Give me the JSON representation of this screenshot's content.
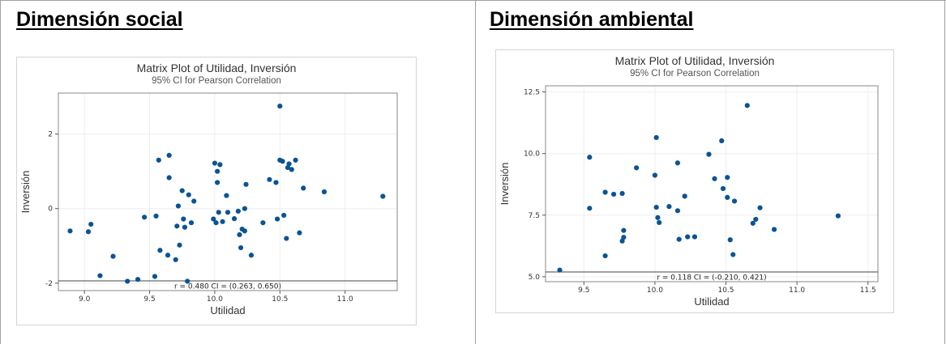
{
  "headings": {
    "left": "Dimensión social",
    "right": "Dimensión ambiental"
  },
  "colors": {
    "point": "#0b5394",
    "grid": "#eeeeee",
    "frame": "#888888"
  },
  "chart_data": [
    {
      "type": "scatter",
      "title": "Matrix Plot of Utilidad, Inversión",
      "subtitle": "95% CI for Pearson Correlation",
      "xlabel": "Utilidad",
      "ylabel": "Inversión",
      "annotation": "r = 0.480  CI = (0.263, 0.650)",
      "xlim": [
        8.8,
        11.4
      ],
      "ylim": [
        -2.2,
        3.1
      ],
      "xticks": [
        9.0,
        9.5,
        10.0,
        10.5,
        11.0
      ],
      "xtick_labels": [
        "9.0",
        "9.5",
        "10.0",
        "10.5",
        "11.0"
      ],
      "yticks": [
        -2,
        0,
        2
      ],
      "ytick_labels": [
        "-2",
        "0",
        "2"
      ],
      "grid": true,
      "points": [
        [
          8.89,
          -0.6
        ],
        [
          9.03,
          -0.62
        ],
        [
          9.05,
          -0.42
        ],
        [
          9.12,
          -1.8
        ],
        [
          9.22,
          -1.28
        ],
        [
          9.33,
          -1.95
        ],
        [
          9.41,
          -1.9
        ],
        [
          9.46,
          -0.23
        ],
        [
          9.54,
          -1.82
        ],
        [
          9.55,
          -0.2
        ],
        [
          9.57,
          1.3
        ],
        [
          9.58,
          -1.12
        ],
        [
          9.64,
          -1.25
        ],
        [
          9.65,
          1.43
        ],
        [
          9.65,
          0.83
        ],
        [
          9.7,
          -1.37
        ],
        [
          9.71,
          -0.47
        ],
        [
          9.72,
          0.07
        ],
        [
          9.73,
          -0.98
        ],
        [
          9.75,
          0.48
        ],
        [
          9.76,
          -0.28
        ],
        [
          9.77,
          -0.5
        ],
        [
          9.79,
          -1.95
        ],
        [
          9.8,
          0.37
        ],
        [
          9.82,
          -0.38
        ],
        [
          9.84,
          0.2
        ],
        [
          9.99,
          -0.28
        ],
        [
          10.0,
          1.22
        ],
        [
          10.01,
          -0.38
        ],
        [
          10.02,
          0.7
        ],
        [
          10.02,
          1.0
        ],
        [
          10.03,
          -0.1
        ],
        [
          10.04,
          1.18
        ],
        [
          10.06,
          -0.35
        ],
        [
          10.09,
          0.35
        ],
        [
          10.1,
          -0.1
        ],
        [
          10.15,
          -0.27
        ],
        [
          10.18,
          -0.07
        ],
        [
          10.19,
          -0.7
        ],
        [
          10.2,
          -1.05
        ],
        [
          10.21,
          -0.55
        ],
        [
          10.23,
          0.0
        ],
        [
          10.23,
          -0.6
        ],
        [
          10.24,
          0.65
        ],
        [
          10.28,
          -1.25
        ],
        [
          10.37,
          -0.38
        ],
        [
          10.42,
          0.78
        ],
        [
          10.47,
          0.7
        ],
        [
          10.48,
          -0.28
        ],
        [
          10.5,
          2.75
        ],
        [
          10.5,
          1.3
        ],
        [
          10.52,
          1.27
        ],
        [
          10.53,
          -0.18
        ],
        [
          10.55,
          -0.8
        ],
        [
          10.56,
          1.1
        ],
        [
          10.57,
          1.2
        ],
        [
          10.59,
          1.05
        ],
        [
          10.62,
          1.3
        ],
        [
          10.65,
          -0.65
        ],
        [
          10.68,
          0.55
        ],
        [
          10.84,
          0.45
        ],
        [
          11.29,
          0.33
        ]
      ]
    },
    {
      "type": "scatter",
      "title": "Matrix Plot of Utilidad, Inversión",
      "subtitle": "95% CI for Pearson Correlation",
      "xlabel": "Utilidad",
      "ylabel": "Inversión",
      "annotation": "r = 0.118  CI = (-0.210, 0.421)",
      "xlim": [
        9.23,
        11.57
      ],
      "ylim": [
        4.8,
        12.75
      ],
      "xticks": [
        9.5,
        10.0,
        10.5,
        11.0,
        11.5
      ],
      "xtick_labels": [
        "9.5",
        "10.0",
        "10.5",
        "11.0",
        "11.5"
      ],
      "yticks": [
        5.0,
        7.5,
        10.0,
        12.5
      ],
      "ytick_labels": [
        "5.0",
        "7.5",
        "10.0",
        "12.5"
      ],
      "grid": true,
      "points": [
        [
          9.33,
          5.27
        ],
        [
          9.54,
          9.85
        ],
        [
          9.54,
          7.78
        ],
        [
          9.65,
          8.43
        ],
        [
          9.65,
          5.85
        ],
        [
          9.71,
          8.35
        ],
        [
          9.77,
          8.38
        ],
        [
          9.77,
          6.45
        ],
        [
          9.78,
          6.6
        ],
        [
          9.78,
          6.88
        ],
        [
          9.87,
          9.42
        ],
        [
          10.0,
          9.12
        ],
        [
          10.01,
          10.65
        ],
        [
          10.01,
          7.82
        ],
        [
          10.02,
          7.4
        ],
        [
          10.03,
          7.2
        ],
        [
          10.1,
          7.85
        ],
        [
          10.16,
          9.62
        ],
        [
          10.16,
          7.68
        ],
        [
          10.17,
          6.52
        ],
        [
          10.21,
          8.27
        ],
        [
          10.23,
          6.62
        ],
        [
          10.28,
          6.62
        ],
        [
          10.38,
          9.97
        ],
        [
          10.42,
          8.98
        ],
        [
          10.47,
          10.52
        ],
        [
          10.48,
          8.58
        ],
        [
          10.51,
          9.03
        ],
        [
          10.51,
          8.22
        ],
        [
          10.53,
          6.5
        ],
        [
          10.55,
          5.9
        ],
        [
          10.56,
          8.07
        ],
        [
          10.65,
          11.95
        ],
        [
          10.69,
          7.17
        ],
        [
          10.71,
          7.33
        ],
        [
          10.74,
          7.8
        ],
        [
          10.84,
          6.92
        ],
        [
          11.29,
          7.47
        ]
      ]
    }
  ]
}
